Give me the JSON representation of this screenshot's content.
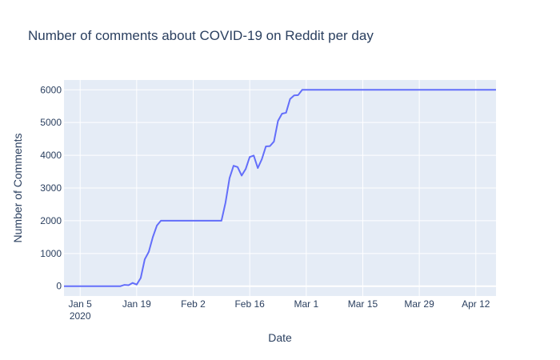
{
  "chart_data": {
    "type": "line",
    "title": "Number of comments about COVID-19 on Reddit per day",
    "xlabel": "Date",
    "ylabel": "Number of Comments",
    "xlim": [
      "2020-01-01",
      "2020-04-17"
    ],
    "ylim": [
      -300,
      6300
    ],
    "x_ticks": [
      {
        "date": "2020-01-05",
        "label": "Jan 5",
        "sublabel": "2020"
      },
      {
        "date": "2020-01-19",
        "label": "Jan 19"
      },
      {
        "date": "2020-02-02",
        "label": "Feb 2"
      },
      {
        "date": "2020-02-16",
        "label": "Feb 16"
      },
      {
        "date": "2020-03-01",
        "label": "Mar 1"
      },
      {
        "date": "2020-03-15",
        "label": "Mar 15"
      },
      {
        "date": "2020-03-29",
        "label": "Mar 29"
      },
      {
        "date": "2020-04-12",
        "label": "Apr 12"
      }
    ],
    "y_ticks": [
      0,
      1000,
      2000,
      3000,
      4000,
      5000,
      6000
    ],
    "grid": true,
    "colors": {
      "line": "#636efa",
      "plot_bg": "#e5ecf6",
      "grid": "#ffffff",
      "text": "#2a3f5f"
    },
    "series": [
      {
        "points": [
          [
            "2020-01-01",
            0
          ],
          [
            "2020-01-05",
            0
          ],
          [
            "2020-01-10",
            0
          ],
          [
            "2020-01-15",
            0
          ],
          [
            "2020-01-16",
            40
          ],
          [
            "2020-01-17",
            30
          ],
          [
            "2020-01-18",
            100
          ],
          [
            "2020-01-19",
            50
          ],
          [
            "2020-01-20",
            250
          ],
          [
            "2020-01-21",
            820
          ],
          [
            "2020-01-22",
            1050
          ],
          [
            "2020-01-23",
            1500
          ],
          [
            "2020-01-24",
            1850
          ],
          [
            "2020-01-25",
            2000
          ],
          [
            "2020-02-08",
            2000
          ],
          [
            "2020-02-09",
            2000
          ],
          [
            "2020-02-10",
            2550
          ],
          [
            "2020-02-11",
            3300
          ],
          [
            "2020-02-12",
            3680
          ],
          [
            "2020-02-13",
            3640
          ],
          [
            "2020-02-14",
            3380
          ],
          [
            "2020-02-15",
            3580
          ],
          [
            "2020-02-16",
            3950
          ],
          [
            "2020-02-17",
            3990
          ],
          [
            "2020-02-18",
            3610
          ],
          [
            "2020-02-19",
            3880
          ],
          [
            "2020-02-20",
            4270
          ],
          [
            "2020-02-21",
            4280
          ],
          [
            "2020-02-22",
            4420
          ],
          [
            "2020-02-23",
            5050
          ],
          [
            "2020-02-24",
            5270
          ],
          [
            "2020-02-25",
            5300
          ],
          [
            "2020-02-26",
            5720
          ],
          [
            "2020-02-27",
            5830
          ],
          [
            "2020-02-28",
            5840
          ],
          [
            "2020-02-29",
            6000
          ],
          [
            "2020-04-17",
            6000
          ]
        ]
      }
    ]
  }
}
